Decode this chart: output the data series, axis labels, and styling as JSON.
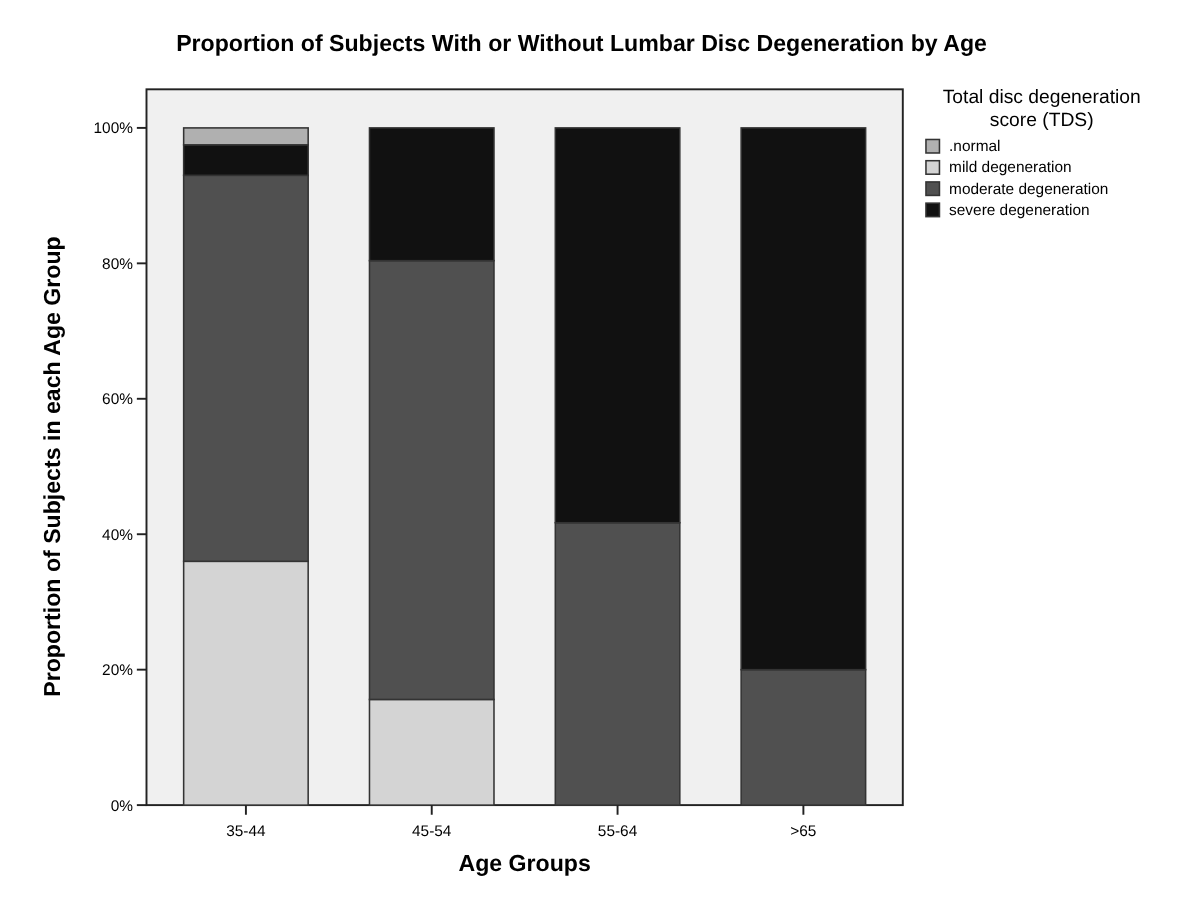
{
  "chart_data": {
    "type": "bar",
    "title": "Proportion of Subjects With or Without Lumbar Disc Degeneration by Age",
    "xlabel": "Age Groups",
    "ylabel": "Proportion of Subjects in each Age Group",
    "legend_title": "Total disc degeneration score (TDS)",
    "categories": [
      "35-44",
      "45-54",
      "55-64",
      ">65"
    ],
    "stacked": true,
    "legend": "right",
    "series": [
      {
        "name": "mild degeneration",
        "color": "#d4d4d4",
        "values": [
          36,
          15.6,
          null,
          null
        ]
      },
      {
        "name": "moderate degeneration",
        "color": "#505050",
        "values": [
          57,
          64.8,
          41.7,
          20
        ]
      },
      {
        "name": "severe degeneration",
        "color": "#111111",
        "values": [
          4.5,
          19.6,
          58.3,
          80
        ]
      },
      {
        "name": ".normal",
        "color": "#b0b0b0",
        "values": [
          2.5,
          null,
          null,
          null
        ]
      }
    ],
    "ylim": [
      0,
      100
    ],
    "yticks": [
      {
        "value": 0,
        "label": "0%"
      },
      {
        "value": 20,
        "label": "20%"
      },
      {
        "value": 40,
        "label": "40%"
      },
      {
        "value": 60,
        "label": "60%"
      },
      {
        "value": 80,
        "label": "80%"
      },
      {
        "value": 100,
        "label": "100%"
      }
    ]
  }
}
